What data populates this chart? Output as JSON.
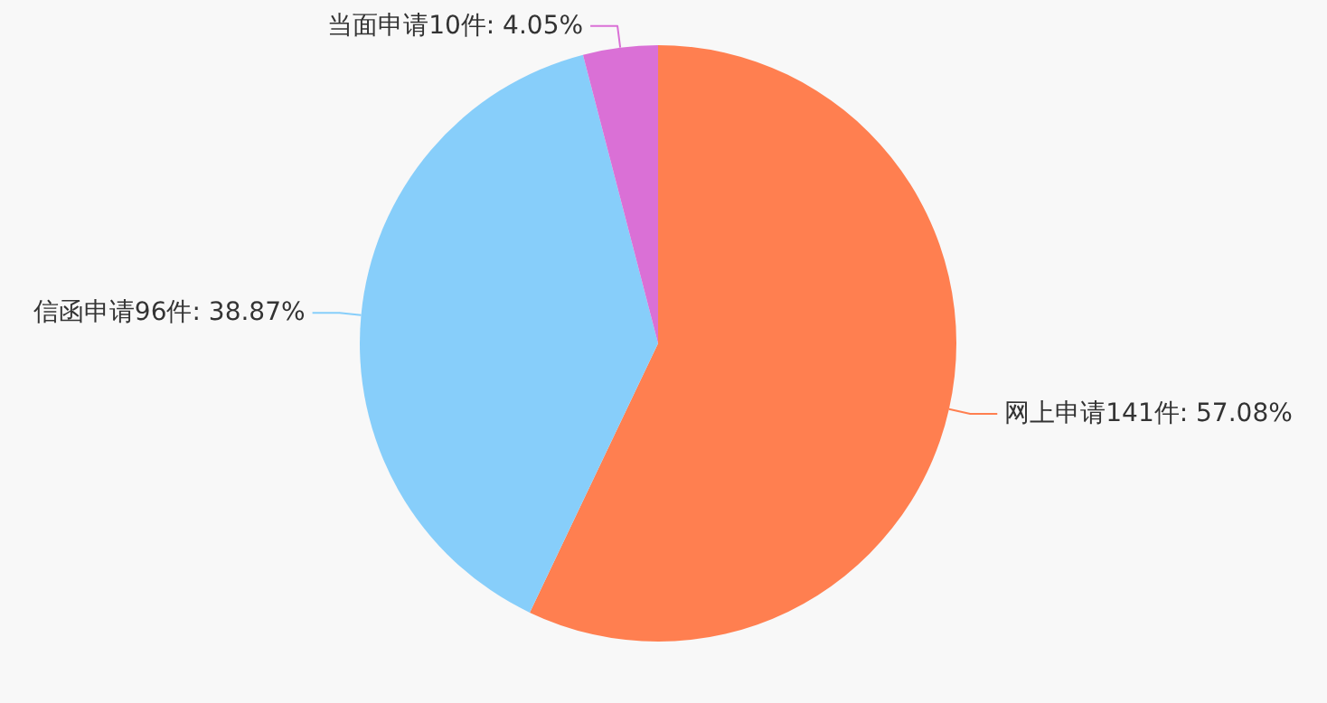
{
  "chart_data": {
    "type": "pie",
    "categories": [
      "网上申请141件",
      "信函申请96件",
      "当面申请10件"
    ],
    "values": [
      57.08,
      38.87,
      4.05
    ],
    "value_labels": [
      "57.08%",
      "38.87%",
      "4.05%"
    ],
    "colors": [
      "#ff7f50",
      "#87cefa",
      "#da70d6"
    ]
  }
}
